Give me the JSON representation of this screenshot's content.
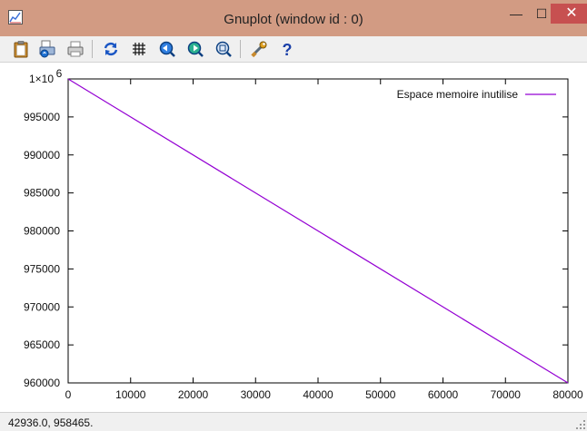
{
  "window": {
    "title": "Gnuplot (window id : 0)",
    "background_title": "gnuplot",
    "min_glyph": "—",
    "max_glyph": "☐",
    "close_glyph": "✕"
  },
  "toolbar": {
    "buttons": [
      {
        "name": "copy-to-clipboard",
        "icon": "clipboard-icon"
      },
      {
        "name": "print",
        "icon": "printer-setup-icon"
      },
      {
        "name": "print",
        "icon": "printer-icon"
      },
      {
        "name": "replot",
        "icon": "refresh-icon"
      },
      {
        "name": "grid",
        "icon": "grid-icon"
      },
      {
        "name": "previous-zoom",
        "icon": "zoom-previous-icon"
      },
      {
        "name": "next-zoom",
        "icon": "zoom-next-icon"
      },
      {
        "name": "autoscale",
        "icon": "zoom-autoscale-icon"
      },
      {
        "name": "options",
        "icon": "wrench-icon"
      },
      {
        "name": "help",
        "icon": "help-icon"
      }
    ]
  },
  "chart_data": {
    "type": "line",
    "title": "",
    "xlabel": "",
    "ylabel": "",
    "xlim": [
      0,
      80000
    ],
    "ylim": [
      960000,
      1000000
    ],
    "x_ticks": [
      0,
      10000,
      20000,
      30000,
      40000,
      50000,
      60000,
      70000,
      80000
    ],
    "y_ticks": [
      960000,
      965000,
      970000,
      975000,
      980000,
      985000,
      990000,
      995000,
      1000000
    ],
    "y_tick_labels": [
      "960000",
      "965000",
      "970000",
      "975000",
      "980000",
      "985000",
      "990000",
      "995000",
      "1×10"
    ],
    "y_top_exponent": "6",
    "grid": false,
    "legend_position": "top-right",
    "series": [
      {
        "name": "Espace memoire inutilise",
        "color": "#9400d3",
        "x": [
          0,
          80000
        ],
        "y": [
          1000000,
          960000
        ]
      }
    ]
  },
  "statusbar": {
    "coordinates": "42936.0,  958465."
  }
}
